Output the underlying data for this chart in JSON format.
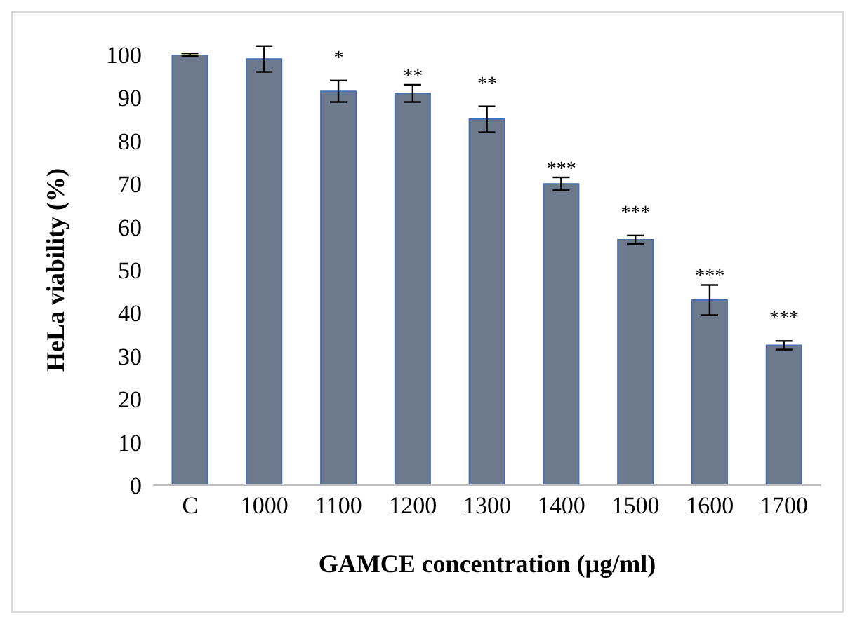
{
  "chart_data": {
    "type": "bar",
    "xlabel": "GAMCE concentration (µg/ml)",
    "ylabel": "HeLa viability (%)",
    "categories": [
      "C",
      "1000",
      "1100",
      "1200",
      "1300",
      "1400",
      "1500",
      "1600",
      "1700"
    ],
    "values": [
      100,
      99,
      91.5,
      91,
      85,
      70,
      57,
      43,
      32.5
    ],
    "errors": [
      0.3,
      3,
      2.5,
      2,
      3,
      1.5,
      1,
      3.5,
      1
    ],
    "color": "#6d7a8e",
    "ylim": [
      0,
      100
    ],
    "yticks": [
      0,
      10,
      20,
      30,
      40,
      50,
      60,
      70,
      80,
      90,
      100
    ],
    "grid": false,
    "legend": false,
    "annotations": [
      {
        "text": "*",
        "x": "1100",
        "y": 91.5
      },
      {
        "text": "**",
        "x": "1200",
        "y": 91
      },
      {
        "text": "**",
        "x": "1300",
        "y": 85
      },
      {
        "text": "***",
        "x": "1400",
        "y": 70
      },
      {
        "text": "***",
        "x": "1500",
        "y": 57
      },
      {
        "text": "***",
        "x": "1600",
        "y": 43
      },
      {
        "text": "***",
        "x": "1700",
        "y": 32.5
      }
    ]
  }
}
